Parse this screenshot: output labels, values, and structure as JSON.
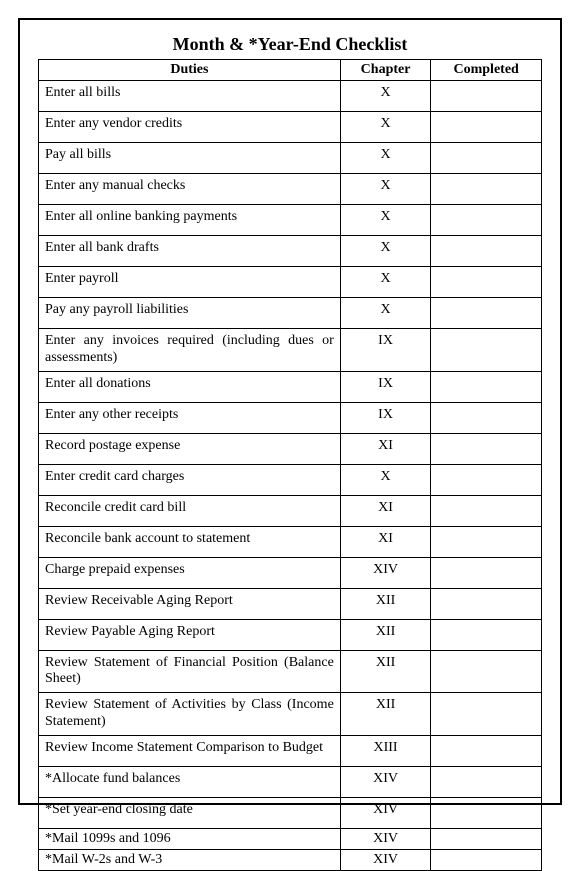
{
  "title": "Month & *Year-End Checklist",
  "columns": {
    "duties": "Duties",
    "chapter": "Chapter",
    "completed": "Completed"
  },
  "rows": [
    {
      "duty": "Enter all bills",
      "chapter": "X",
      "class": "oneline"
    },
    {
      "duty": "Enter any vendor credits",
      "chapter": "X",
      "class": "oneline"
    },
    {
      "duty": "Pay all bills",
      "chapter": "X",
      "class": "oneline"
    },
    {
      "duty": "Enter any manual checks",
      "chapter": "X",
      "class": "oneline"
    },
    {
      "duty": "Enter all online banking payments",
      "chapter": "X",
      "class": "oneline"
    },
    {
      "duty": "Enter all bank drafts",
      "chapter": "X",
      "class": "oneline"
    },
    {
      "duty": "Enter payroll",
      "chapter": "X",
      "class": "oneline"
    },
    {
      "duty": "Pay any payroll liabilities",
      "chapter": "X",
      "class": "oneline"
    },
    {
      "duty": "Enter any invoices required (including dues or assessments)",
      "chapter": "IX",
      "class": "twoline"
    },
    {
      "duty": "Enter all donations",
      "chapter": "IX",
      "class": "oneline"
    },
    {
      "duty": "Enter any other receipts",
      "chapter": "IX",
      "class": "oneline"
    },
    {
      "duty": "Record postage expense",
      "chapter": "XI",
      "class": "oneline"
    },
    {
      "duty": "Enter credit card charges",
      "chapter": "X",
      "class": "oneline"
    },
    {
      "duty": "Reconcile credit card bill",
      "chapter": "XI",
      "class": "oneline"
    },
    {
      "duty": "Reconcile bank account to statement",
      "chapter": "XI",
      "class": "oneline"
    },
    {
      "duty": "Charge prepaid expenses",
      "chapter": "XIV",
      "class": "oneline"
    },
    {
      "duty": "Review Receivable Aging Report",
      "chapter": "XII",
      "class": "oneline"
    },
    {
      "duty": "Review Payable Aging Report",
      "chapter": "XII",
      "class": "oneline"
    },
    {
      "duty": "Review Statement of Financial Position (Balance Sheet)",
      "chapter": "XII",
      "class": "twoline"
    },
    {
      "duty": "Review Statement of Activities by Class (Income Statement)",
      "chapter": "XII",
      "class": "twoline"
    },
    {
      "duty": "Review Income Statement Comparison to Budget",
      "chapter": "XIII",
      "class": "twoline"
    },
    {
      "duty": "*Allocate fund balances",
      "chapter": "XIV",
      "class": "oneline"
    },
    {
      "duty": "*Set year-end closing date",
      "chapter": "XIV",
      "class": "oneline"
    },
    {
      "duty": "*Mail 1099s and 1096",
      "chapter": "XIV",
      "class": "short"
    },
    {
      "duty": "*Mail W-2s and W-3",
      "chapter": "XIV",
      "class": "short"
    }
  ]
}
